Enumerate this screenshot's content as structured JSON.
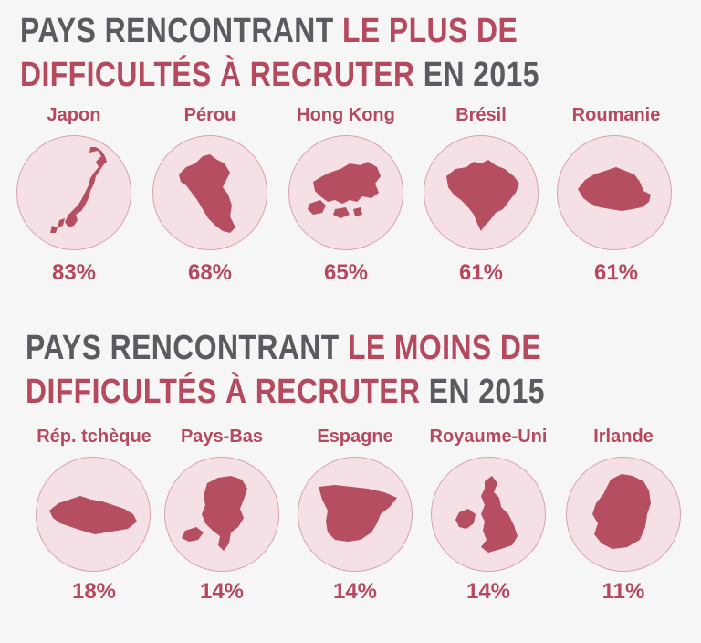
{
  "top_section": {
    "title_part1": "PAYS RENCONTRANT ",
    "title_part2": "LE PLUS DE",
    "title_part3": "DIFFICULTÉS À RECRUTER",
    "title_part4": " EN 2015",
    "countries": [
      {
        "name": "Japon",
        "value": "83%",
        "icon": "japan-map-icon"
      },
      {
        "name": "Pérou",
        "value": "68%",
        "icon": "peru-map-icon"
      },
      {
        "name": "Hong Kong",
        "value": "65%",
        "icon": "hong-kong-map-icon"
      },
      {
        "name": "Brésil",
        "value": "61%",
        "icon": "brazil-map-icon"
      },
      {
        "name": "Roumanie",
        "value": "61%",
        "icon": "romania-map-icon"
      }
    ]
  },
  "bottom_section": {
    "title_part1": "PAYS RENCONTRANT ",
    "title_part2": "LE MOINS DE",
    "title_part3": "DIFFICULTÉS À RECRUTER",
    "title_part4": " EN 2015",
    "countries": [
      {
        "name": "Rép. tchèque",
        "value": "18%",
        "icon": "czech-republic-map-icon"
      },
      {
        "name": "Pays-Bas",
        "value": "14%",
        "icon": "netherlands-map-icon"
      },
      {
        "name": "Espagne",
        "value": "14%",
        "icon": "spain-map-icon"
      },
      {
        "name": "Royaume-Uni",
        "value": "14%",
        "icon": "united-kingdom-map-icon"
      },
      {
        "name": "Irlande",
        "value": "11%",
        "icon": "ireland-map-icon"
      }
    ]
  },
  "colors": {
    "accent": "#b5495d",
    "title_gray": "#5a5b60",
    "circle_fill": "#f5e1e5",
    "map_fill": "#b44e60",
    "background": "#f6f6f6"
  }
}
